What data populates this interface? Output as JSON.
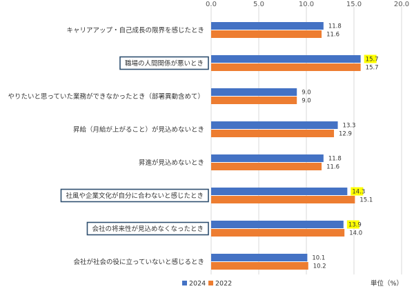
{
  "chart_data": {
    "type": "bar",
    "orientation": "horizontal",
    "categories": [
      "キャリアアップ・自己成長の限界を感じたとき",
      "職場の人間関係が悪いとき",
      "やりたいと思っていた業務ができなかったとき（部署異動含めて）",
      "昇給（月給が上がること）が見込めないとき",
      "昇進が見込めないとき",
      "社風や企業文化が自分に合わないと感じたとき",
      "会社の将来性が見込めなくなったとき",
      "会社が社会の役に立っていないと感じるとき"
    ],
    "boxed_categories": [
      1,
      5,
      6
    ],
    "series": [
      {
        "name": "2024",
        "values": [
          11.8,
          15.7,
          9.0,
          13.3,
          11.8,
          14.3,
          13.9,
          10.1
        ],
        "labels": [
          "11.8",
          "15.7",
          "9.0",
          "13.3",
          "11.8",
          "14.3",
          "13.9",
          "10.1"
        ],
        "highlighted": [
          1,
          5,
          6
        ]
      },
      {
        "name": "2022",
        "values": [
          11.6,
          15.7,
          9.0,
          12.9,
          11.6,
          15.1,
          14.0,
          10.2
        ],
        "labels": [
          "11.6",
          "15.7",
          "9.0",
          "12.9",
          "11.6",
          "15.1",
          "14.0",
          "10.2"
        ],
        "highlighted": []
      }
    ],
    "xlim": [
      0,
      20
    ],
    "xticks": [
      "0.0",
      "5.0",
      "10.0",
      "15.0",
      "20.0"
    ],
    "tick_axis_position": "top",
    "legend_position": "bottom-left",
    "unit_label": "単位（%）",
    "grid": true,
    "colors": {
      "2024": "#4472C4",
      "2022": "#ED7D31",
      "highlight": "#FFFF00",
      "box": "#2F4F6F",
      "grid": "#D9D9D9"
    }
  }
}
